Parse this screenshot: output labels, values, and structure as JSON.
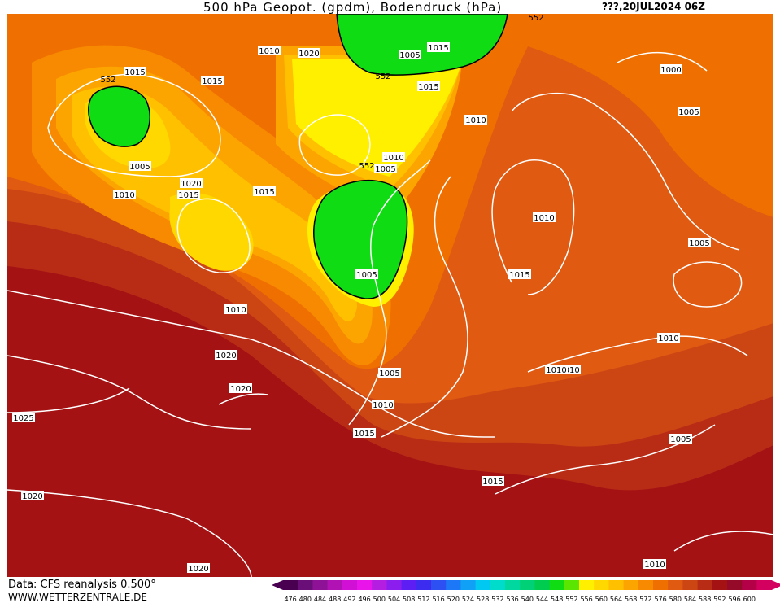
{
  "header": {
    "title": "500 hPa Geopot. (gpdm), Bodendruck (hPa)",
    "valid_time": "???,20JUL2024  06Z"
  },
  "footer": {
    "source": "Data: CFS reanalysis 0.500°",
    "credit": "WWW.WETTERZENTRALE.DE"
  },
  "colors": {
    "geopotential_scale": [
      "#4a0050",
      "#6a0e78",
      "#8e1296",
      "#b012b4",
      "#d010d4",
      "#e814ea",
      "#b41ee0",
      "#8b1eee",
      "#5c1ef2",
      "#3c2cf0",
      "#2c50f2",
      "#1c78f6",
      "#10a0f6",
      "#00c8f0",
      "#00dccc",
      "#00d8a0",
      "#00d076",
      "#00cc50",
      "#10dc14",
      "#5ae600",
      "#fff000",
      "#ffd800",
      "#ffc000",
      "#fca400",
      "#f78a00",
      "#ef7000",
      "#e05a12",
      "#cc4614",
      "#b82c16",
      "#a41214",
      "#940a28",
      "#b40046",
      "#d40060"
    ],
    "isobar_line": "#ffffff",
    "contour_line": "#000000"
  },
  "map": {
    "isobar_labels": [
      "1015",
      "1020",
      "1010",
      "1015",
      "1005",
      "1010",
      "1020",
      "1015",
      "1005",
      "1000",
      "1015",
      "1010",
      "1005",
      "1010",
      "1010",
      "1005",
      "1005",
      "1015",
      "1005",
      "1015",
      "1010",
      "1010",
      "1015",
      "1010",
      "1005",
      "1010",
      "1020",
      "1025",
      "1010",
      "1020",
      "1005",
      "1015",
      "1020",
      "1015",
      "1010",
      "1020"
    ],
    "contour_labels": [
      "552",
      "552",
      "552",
      "552"
    ]
  },
  "colorbar": {
    "ticks": [
      "476",
      "480",
      "484",
      "488",
      "492",
      "496",
      "500",
      "504",
      "508",
      "512",
      "516",
      "520",
      "524",
      "528",
      "532",
      "536",
      "540",
      "544",
      "548",
      "552",
      "556",
      "560",
      "564",
      "568",
      "572",
      "576",
      "580",
      "584",
      "588",
      "592",
      "596",
      "600"
    ]
  }
}
